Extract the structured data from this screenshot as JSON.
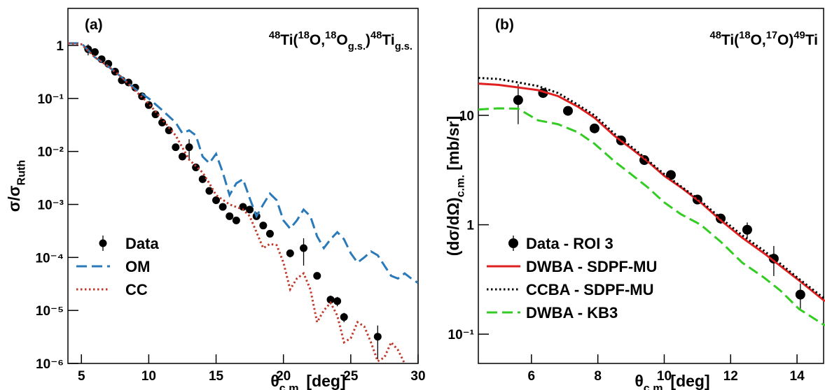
{
  "chart_data": [
    {
      "type": "line",
      "panel_label": "(a)",
      "annotation": [
        {
          "text": "48",
          "pos": "sup"
        },
        {
          "text": "Ti(",
          "pos": "base"
        },
        {
          "text": "18",
          "pos": "sup"
        },
        {
          "text": "O,",
          "pos": "base"
        },
        {
          "text": "18",
          "pos": "sup"
        },
        {
          "text": "O",
          "pos": "base"
        },
        {
          "text": "g.s.",
          "pos": "sub"
        },
        {
          "text": ")",
          "pos": "base"
        },
        {
          "text": "48",
          "pos": "sup"
        },
        {
          "text": "Ti",
          "pos": "base"
        },
        {
          "text": "g.s.",
          "pos": "sub"
        }
      ],
      "x_label": [
        {
          "text": "θ",
          "pos": "base"
        },
        {
          "text": "c.m.",
          "pos": "sub"
        },
        {
          "text": " [deg]",
          "pos": "base"
        }
      ],
      "y_label": [
        {
          "text": "σ/σ",
          "pos": "base"
        },
        {
          "text": "Ruth",
          "pos": "sub"
        }
      ],
      "xlim": [
        4,
        30
      ],
      "ylim": [
        1e-06,
        5
      ],
      "log_y": true,
      "xticks": [
        5,
        10,
        15,
        20,
        25,
        30
      ],
      "yticks": [
        {
          "value": 1e-06,
          "label": "10⁻⁶"
        },
        {
          "value": 1e-05,
          "label": "10⁻⁵"
        },
        {
          "value": 0.0001,
          "label": "10⁻⁴"
        },
        {
          "value": 0.001,
          "label": "10⁻³"
        },
        {
          "value": 0.01,
          "label": "10⁻²"
        },
        {
          "value": 0.1,
          "label": "10⁻¹"
        },
        1
      ],
      "legend": "bottom-left",
      "series": [
        {
          "name": "Data",
          "kind": "points",
          "color": "#000000",
          "x": [
            5.5,
            6,
            6.5,
            7,
            7.5,
            8,
            8.5,
            9,
            9.5,
            10,
            10.5,
            11,
            11.5,
            12,
            12.5,
            13,
            13.5,
            14,
            14.5,
            15,
            15.5,
            16,
            16.5,
            17,
            17.5,
            18,
            18.5,
            19,
            20.5,
            21.5,
            22.5,
            23.5,
            24,
            24.5,
            27
          ],
          "values": [
            0.85,
            0.75,
            0.55,
            0.45,
            0.32,
            0.22,
            0.2,
            0.16,
            0.11,
            0.075,
            0.05,
            0.035,
            0.025,
            0.012,
            0.008,
            0.012,
            0.005,
            0.003,
            0.0018,
            0.0012,
            0.0009,
            0.0006,
            0.0005,
            0.0009,
            0.0008,
            0.0006,
            0.0004,
            0.00028,
            0.00012,
            0.00015,
            4.5e-05,
            1.6e-05,
            1.5e-05,
            7.5e-06,
            3.2e-06
          ],
          "errors": [
            0.2,
            0.03,
            0.02,
            0.015,
            0.01,
            0.008,
            0.007,
            0.006,
            0.004,
            0.003,
            0.002,
            0.0015,
            0.001,
            0.0006,
            0.0004,
            0.005,
            0.0003,
            0.0002,
            0.0001,
            8e-05,
            6e-05,
            4e-05,
            3e-05,
            6e-05,
            5e-05,
            4e-05,
            3e-05,
            2e-05,
            2e-05,
            8e-05,
            6e-06,
            3e-06,
            3e-06,
            1.5e-06,
            2e-06
          ]
        },
        {
          "name": "OM",
          "kind": "line",
          "dash": "dashed",
          "color": "#2a7ab9",
          "x": [
            4,
            5,
            6,
            7,
            8,
            9,
            10,
            11,
            12,
            12.5,
            13,
            13.5,
            14,
            14.5,
            15,
            15.5,
            16,
            16.5,
            17,
            17.5,
            18,
            18.5,
            19,
            19.5,
            20,
            20.5,
            21,
            21.5,
            22,
            22.5,
            23,
            23.5,
            24,
            24.5,
            25,
            25.5,
            26,
            26.5,
            27,
            27.5,
            28,
            28.5,
            29,
            29.5,
            30
          ],
          "values": [
            1.1,
            1.1,
            0.6,
            0.4,
            0.25,
            0.15,
            0.1,
            0.06,
            0.035,
            0.022,
            0.025,
            0.02,
            0.008,
            0.006,
            0.009,
            0.004,
            0.0015,
            0.0025,
            0.003,
            0.0013,
            0.0006,
            0.001,
            0.0016,
            0.0012,
            0.0005,
            0.00035,
            0.0005,
            0.0008,
            0.0006,
            0.00025,
            0.00015,
            0.00022,
            0.0003,
            0.00022,
            0.00012,
            8e-05,
            0.0001,
            0.00013,
            0.00011,
            7e-05,
            4.5e-05,
            4e-05,
            5e-05,
            4e-05,
            3.3e-05
          ]
        },
        {
          "name": "CC",
          "kind": "line",
          "dash": "dotted",
          "color": "#c0392b",
          "x": [
            4,
            5,
            6,
            7,
            8,
            9,
            10,
            11,
            12,
            13,
            14,
            14.5,
            15,
            16,
            17,
            17.5,
            18,
            18.5,
            19,
            19.5,
            20,
            20.5,
            21,
            21.5,
            22,
            22.5,
            23,
            23.5,
            24,
            24.5,
            25,
            25.5,
            26,
            26.5,
            27,
            27.5,
            28,
            28.5,
            29
          ],
          "values": [
            1.1,
            1.05,
            0.6,
            0.4,
            0.25,
            0.14,
            0.08,
            0.04,
            0.02,
            0.007,
            0.004,
            0.0025,
            0.0015,
            0.001,
            0.0008,
            0.0006,
            0.0003,
            0.00015,
            0.00018,
            0.00017,
            8e-05,
            2.5e-05,
            4e-05,
            5e-05,
            2.5e-05,
            6e-06,
            1e-05,
            1.4e-05,
            8e-06,
            2.5e-06,
            3e-06,
            6e-06,
            5e-06,
            2.5e-06,
            1.1e-06,
            1.3e-06,
            2.5e-06,
            1.8e-06,
            1e-06
          ]
        }
      ]
    },
    {
      "type": "line",
      "panel_label": "(b)",
      "annotation": [
        {
          "text": "48",
          "pos": "sup"
        },
        {
          "text": "Ti(",
          "pos": "base"
        },
        {
          "text": "18",
          "pos": "sup"
        },
        {
          "text": "O,",
          "pos": "base"
        },
        {
          "text": "17",
          "pos": "sup"
        },
        {
          "text": "O)",
          "pos": "base"
        },
        {
          "text": "49",
          "pos": "sup"
        },
        {
          "text": "Ti",
          "pos": "base"
        }
      ],
      "x_label": [
        {
          "text": "θ",
          "pos": "base"
        },
        {
          "text": "c.m.",
          "pos": "sub"
        },
        {
          "text": " [deg]",
          "pos": "base"
        }
      ],
      "y_label": [
        {
          "text": "(dσ/dΩ)",
          "pos": "base"
        },
        {
          "text": "c.m.",
          "pos": "sub"
        },
        {
          "text": " [mb/sr]",
          "pos": "base"
        }
      ],
      "xlim": [
        4.4,
        14.8
      ],
      "ylim": [
        0.054,
        95
      ],
      "log_y": true,
      "xticks": [
        6,
        8,
        10,
        12,
        14
      ],
      "yticks": [
        {
          "value": 0.1,
          "label": "10⁻¹"
        },
        1,
        10
      ],
      "legend": "bottom-left",
      "series": [
        {
          "name": "Data - ROI 3",
          "kind": "points",
          "color": "#000000",
          "x": [
            5.6,
            6.35,
            7.1,
            7.9,
            8.7,
            9.4,
            10.2,
            11.0,
            11.7,
            12.5,
            13.3,
            14.1
          ],
          "values": [
            13.8,
            16,
            11,
            7.6,
            5.9,
            3.9,
            2.85,
            1.7,
            1.14,
            0.9,
            0.49,
            0.23
          ],
          "errors": [
            5.5,
            0.8,
            0.6,
            0.4,
            0.3,
            0.2,
            0.25,
            0.15,
            0.12,
            0.15,
            0.15,
            0.06
          ]
        },
        {
          "name": "DWBA - SDPF-MU",
          "kind": "line",
          "dash": "solid",
          "color": "#e02020",
          "x": [
            4.4,
            5,
            5.6,
            6.2,
            6.8,
            7.4,
            7.9,
            8.5,
            9.0,
            9.5,
            10,
            10.5,
            11.1,
            11.7,
            12.35,
            13,
            13.5,
            14.06,
            14.84
          ],
          "values": [
            19.5,
            19,
            18,
            17,
            15,
            12,
            9.5,
            6.5,
            5,
            3.8,
            2.8,
            2.2,
            1.6,
            1.1,
            0.76,
            0.55,
            0.42,
            0.31,
            0.2
          ]
        },
        {
          "name": "CCBA - SDPF-MU",
          "kind": "line",
          "dash": "dotted",
          "color": "#000000",
          "x": [
            4.4,
            5,
            5.6,
            6.2,
            6.8,
            7.4,
            7.9,
            8.5,
            9.0,
            9.5,
            10,
            10.5,
            11.1,
            11.7,
            12.35,
            13,
            13.5,
            14.06,
            14.84
          ],
          "values": [
            22,
            21.5,
            20,
            18.5,
            16,
            12.5,
            10,
            6.8,
            5.2,
            3.9,
            2.9,
            2.25,
            1.65,
            1.15,
            0.8,
            0.58,
            0.44,
            0.32,
            0.21
          ]
        },
        {
          "name": "DWBA - KB3",
          "kind": "line",
          "dash": "dashed",
          "color": "#33cc22",
          "x": [
            4.4,
            5,
            5.6,
            6.2,
            6.8,
            7.4,
            7.9,
            8.5,
            9.0,
            9.5,
            10,
            10.5,
            11.1,
            11.7,
            12.35,
            13,
            13.5,
            14.06,
            14.84
          ],
          "values": [
            11.3,
            11.6,
            11.5,
            9,
            8.3,
            7,
            5.5,
            3.8,
            2.9,
            2.2,
            1.6,
            1.25,
            1.0,
            0.7,
            0.45,
            0.33,
            0.25,
            0.17,
            0.12
          ]
        }
      ]
    }
  ]
}
